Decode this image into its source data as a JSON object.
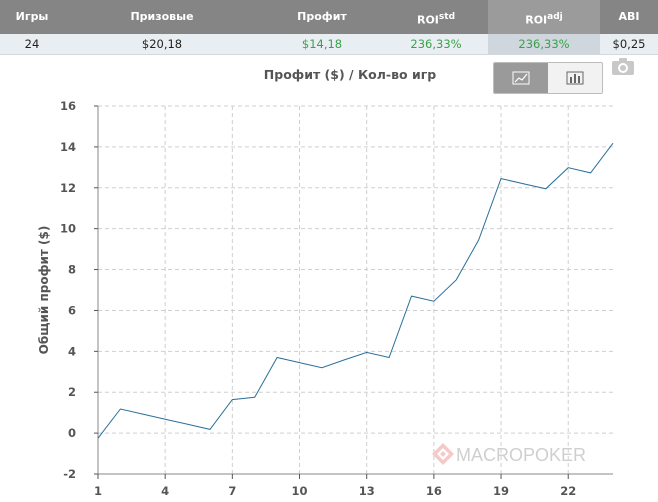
{
  "stats": {
    "headers": {
      "games": "Игры",
      "winnings": "Призовые",
      "profit": "Профит",
      "roi_std_base": "ROI",
      "roi_std_sup": "std",
      "roi_adj_base": "ROI",
      "roi_adj_sup": "adj",
      "abi": "ABI"
    },
    "values": {
      "games": "24",
      "winnings": "$20,18",
      "profit": "$14,18",
      "roi_std": "236,33%",
      "roi_adj": "236,33%",
      "abi": "$0,25"
    },
    "colors": {
      "header_bg": "#858585",
      "positive": "#3aa14a"
    }
  },
  "toolbar": {
    "line_chart_icon": "line-chart-icon",
    "bar_chart_icon": "bar-chart-icon",
    "camera_icon": "camera-icon"
  },
  "watermark": "MACROPOKER",
  "chart_data": {
    "type": "line",
    "title": "Профит ($) / Кол-во игр",
    "xlabel": "",
    "ylabel": "Общий профит ($)",
    "xlim": [
      1,
      24
    ],
    "ylim": [
      -2,
      16
    ],
    "xticks": [
      1,
      4,
      7,
      10,
      13,
      16,
      19,
      22
    ],
    "yticks": [
      -2,
      0,
      2,
      4,
      6,
      8,
      10,
      12,
      14,
      16
    ],
    "grid": true,
    "line_color": "#2b6f99",
    "series": [
      {
        "x": [
          1,
          2,
          3,
          4,
          5,
          6,
          7,
          8,
          9,
          10,
          11,
          12,
          13,
          14,
          15,
          16,
          17,
          18,
          19,
          20,
          21,
          22,
          23,
          24
        ],
        "values": [
          -0.25,
          1.18,
          0.93,
          0.68,
          0.43,
          0.18,
          1.64,
          1.75,
          3.7,
          3.45,
          3.2,
          3.58,
          3.95,
          3.7,
          6.7,
          6.45,
          7.5,
          9.45,
          12.45,
          12.2,
          11.95,
          12.98,
          12.73,
          14.18
        ]
      }
    ]
  }
}
